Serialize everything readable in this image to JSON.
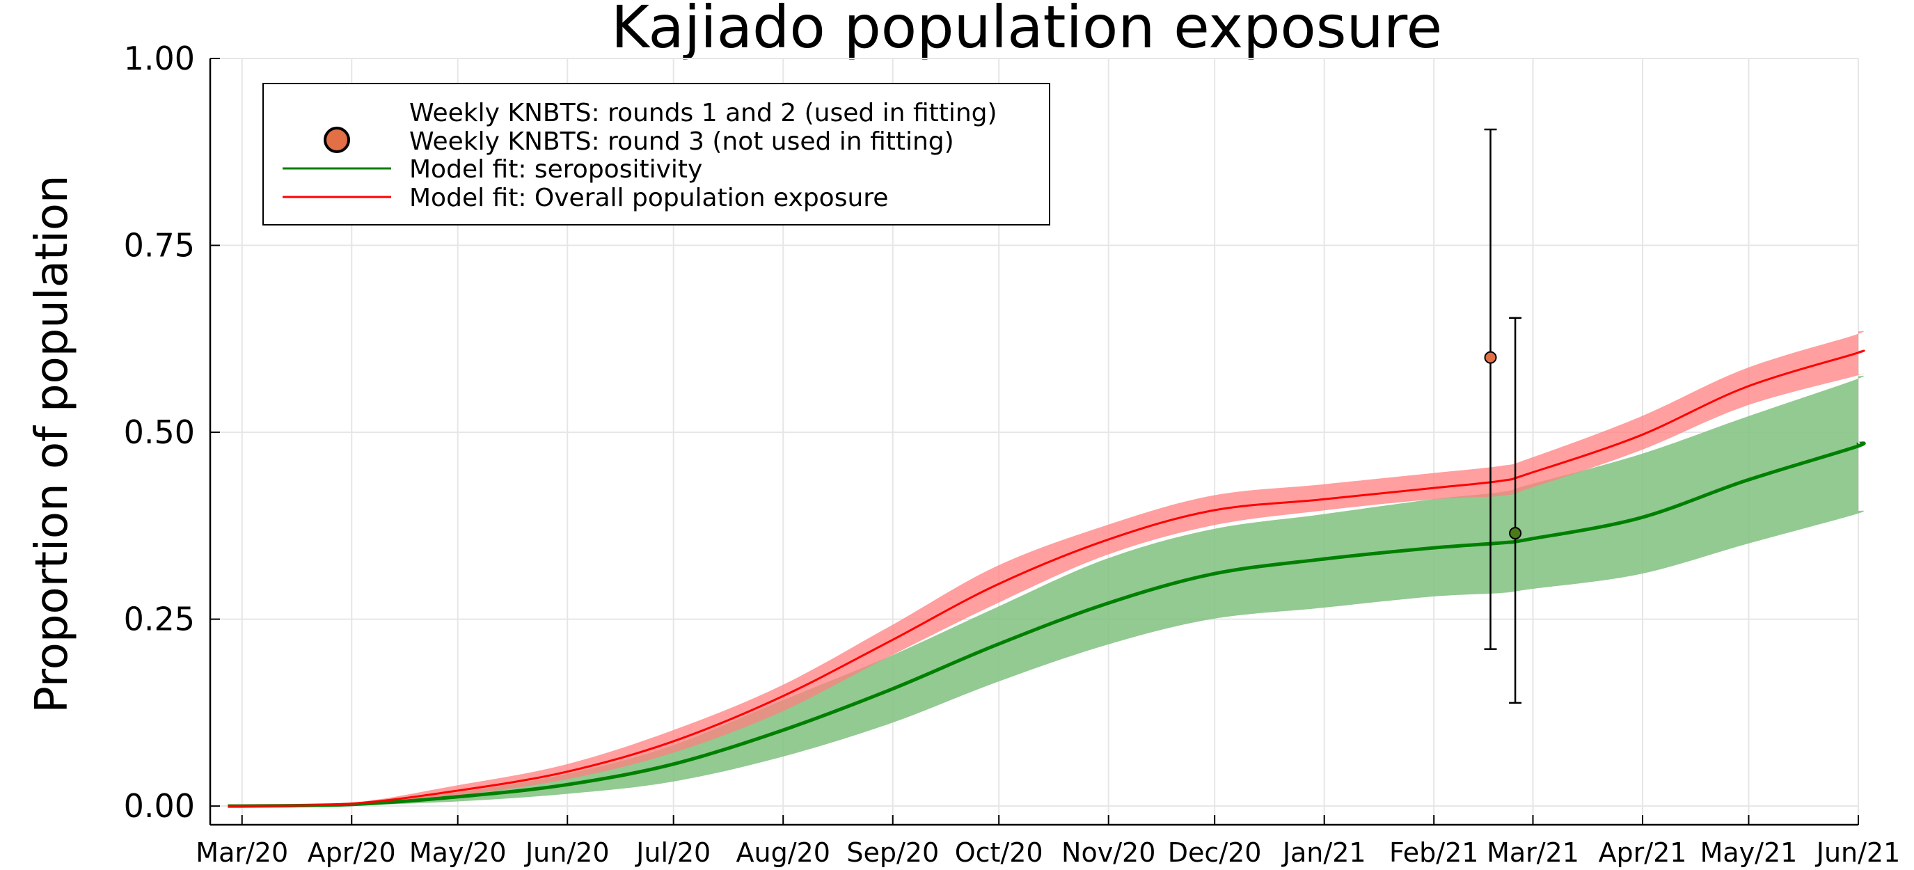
{
  "chart_data": {
    "type": "line",
    "title": "Kajiado population exposure",
    "xlabel": "",
    "ylabel": "Proportion of population",
    "x_ticks": [
      "Mar/20",
      "Apr/20",
      "May/20",
      "Jun/20",
      "Jul/20",
      "Aug/20",
      "Sep/20",
      "Oct/20",
      "Nov/20",
      "Dec/20",
      "Jan/21",
      "Feb/21",
      "Mar/21",
      "Apr/21",
      "May/21",
      "Jun/21"
    ],
    "y_ticks": [
      "0.00",
      "0.25",
      "0.50",
      "0.75",
      "1.00"
    ],
    "xlim": [
      "2020-02-21",
      "2021-06-01"
    ],
    "ylim": [
      -0.025,
      1.0
    ],
    "grid": true,
    "legend_position": "top-left",
    "colors": {
      "seropositivity": "#008000",
      "seropositivity_band": "#7fc17f",
      "exposure": "#ff0000",
      "exposure_band": "#ff7f7f",
      "round3_marker": "#e26f46",
      "round12_marker": "#4a7a1a",
      "errorbar": "#000000"
    },
    "series": [
      {
        "name": "Model fit: seropositivity",
        "x": [
          "2020-02-26",
          "2020-03-31",
          "2020-04-30",
          "2020-05-31",
          "2020-06-30",
          "2020-07-31",
          "2020-08-31",
          "2020-09-30",
          "2020-10-31",
          "2020-11-30",
          "2020-12-31",
          "2021-01-31",
          "2021-02-20",
          "2021-02-28",
          "2021-03-31",
          "2021-04-30",
          "2021-05-31",
          "2021-06-01"
        ],
        "y": [
          0.0,
          0.002,
          0.012,
          0.028,
          0.055,
          0.1,
          0.155,
          0.215,
          0.27,
          0.31,
          0.33,
          0.345,
          0.352,
          0.357,
          0.385,
          0.435,
          0.48,
          0.485
        ],
        "lower": [
          0.0,
          0.001,
          0.006,
          0.016,
          0.032,
          0.065,
          0.11,
          0.165,
          0.215,
          0.25,
          0.265,
          0.28,
          0.285,
          0.29,
          0.31,
          0.35,
          0.39,
          0.395
        ],
        "upper": [
          0.0,
          0.003,
          0.018,
          0.042,
          0.08,
          0.14,
          0.2,
          0.265,
          0.33,
          0.37,
          0.39,
          0.41,
          0.42,
          0.43,
          0.47,
          0.52,
          0.57,
          0.575
        ]
      },
      {
        "name": "Model fit: Overall population exposure",
        "x": [
          "2020-02-26",
          "2020-03-31",
          "2020-04-30",
          "2020-05-31",
          "2020-06-30",
          "2020-07-31",
          "2020-08-31",
          "2020-09-30",
          "2020-10-31",
          "2020-11-30",
          "2020-12-31",
          "2021-01-31",
          "2021-02-20",
          "2021-02-28",
          "2021-03-31",
          "2021-04-30",
          "2021-05-31",
          "2021-06-01"
        ],
        "y": [
          0.0,
          0.003,
          0.02,
          0.045,
          0.085,
          0.145,
          0.22,
          0.295,
          0.355,
          0.395,
          0.41,
          0.425,
          0.435,
          0.445,
          0.495,
          0.56,
          0.605,
          0.607
        ],
        "lower": [
          0.0,
          0.002,
          0.014,
          0.035,
          0.07,
          0.125,
          0.2,
          0.27,
          0.335,
          0.375,
          0.395,
          0.41,
          0.415,
          0.425,
          0.475,
          0.535,
          0.575,
          0.577
        ],
        "upper": [
          0.0,
          0.004,
          0.027,
          0.055,
          0.1,
          0.16,
          0.24,
          0.32,
          0.375,
          0.415,
          0.43,
          0.445,
          0.455,
          0.465,
          0.52,
          0.585,
          0.63,
          0.635
        ]
      }
    ],
    "points": [
      {
        "name": "Weekly KNBTS: rounds 1 and 2 (used in fitting)",
        "x": "2021-02-24",
        "y": 0.365,
        "lower": 0.138,
        "upper": 0.653
      },
      {
        "name": "Weekly KNBTS: round 3 (not used in fitting)",
        "x": "2021-02-17",
        "y": 0.6,
        "lower": 0.21,
        "upper": 0.905
      }
    ]
  }
}
